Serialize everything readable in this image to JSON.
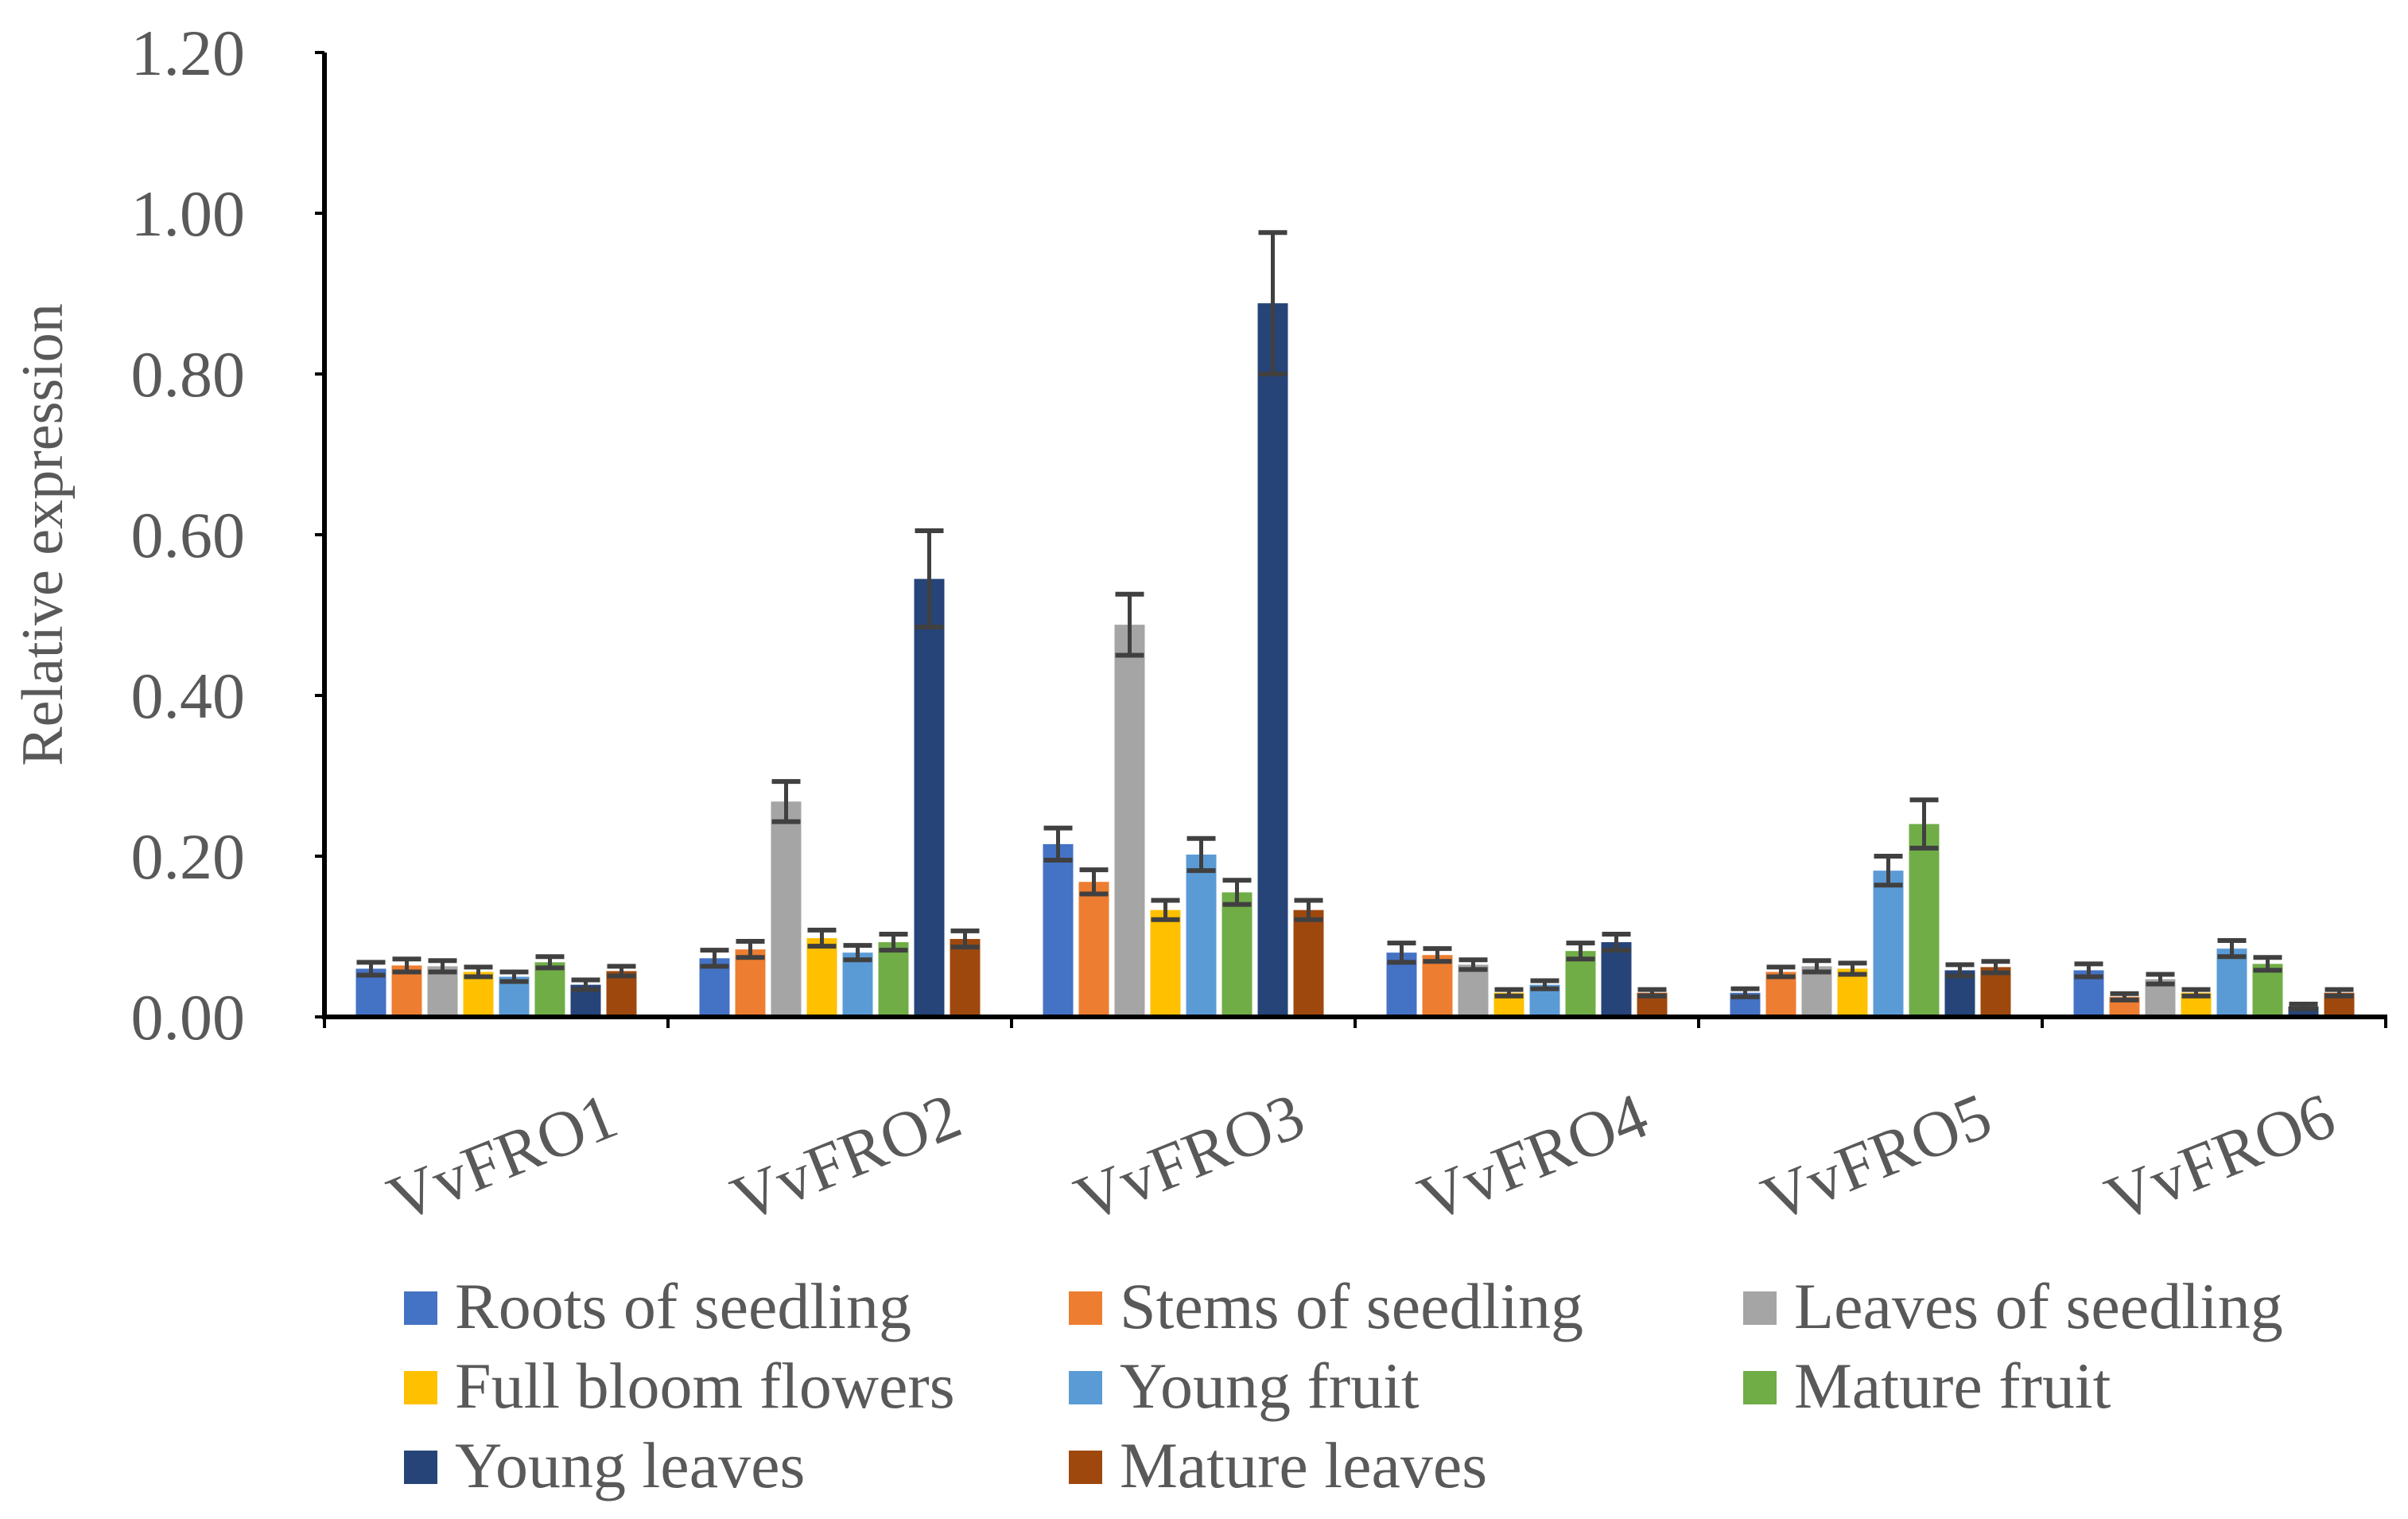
{
  "chart_data": {
    "type": "bar",
    "title": "",
    "xlabel": "",
    "ylabel": "Relative expression",
    "ylim": [
      0,
      1.2
    ],
    "yticks": [
      "0.00",
      "0.20",
      "0.40",
      "0.60",
      "0.80",
      "1.00",
      "1.20"
    ],
    "grid": false,
    "legend_position": "bottom",
    "categories": [
      "VvFRO1",
      "VvFRO2",
      "VvFRO3",
      "VvFRO4",
      "VvFRO5",
      "VvFRO6"
    ],
    "series": [
      {
        "name": "Roots of seedling",
        "color": "#4472C4",
        "values": [
          0.06,
          0.073,
          0.215,
          0.08,
          0.03,
          0.058
        ],
        "errors": [
          0.008,
          0.01,
          0.02,
          0.012,
          0.005,
          0.008
        ]
      },
      {
        "name": " Stems of seedling",
        "color": "#ED7D31",
        "values": [
          0.064,
          0.084,
          0.168,
          0.077,
          0.056,
          0.025
        ],
        "errors": [
          0.008,
          0.01,
          0.015,
          0.008,
          0.006,
          0.004
        ]
      },
      {
        "name": "Leaves of seedling",
        "color": "#A5A5A5",
        "values": [
          0.063,
          0.268,
          0.488,
          0.065,
          0.063,
          0.047
        ],
        "errors": [
          0.007,
          0.025,
          0.038,
          0.006,
          0.007,
          0.006
        ]
      },
      {
        "name": "Full bloom flowers",
        "color": "#FFC000",
        "values": [
          0.056,
          0.098,
          0.133,
          0.03,
          0.06,
          0.03
        ],
        "errors": [
          0.006,
          0.01,
          0.012,
          0.004,
          0.007,
          0.004
        ]
      },
      {
        "name": "Young fruit",
        "color": "#5B9BD5",
        "values": [
          0.05,
          0.08,
          0.202,
          0.04,
          0.182,
          0.085
        ],
        "errors": [
          0.006,
          0.009,
          0.02,
          0.005,
          0.018,
          0.01
        ]
      },
      {
        "name": "Mature fruit",
        "color": "#70AD47",
        "values": [
          0.068,
          0.093,
          0.155,
          0.082,
          0.24,
          0.066
        ],
        "errors": [
          0.007,
          0.01,
          0.015,
          0.01,
          0.03,
          0.008
        ]
      },
      {
        "name": "Young leaves",
        "color": "#264478",
        "values": [
          0.04,
          0.545,
          0.888,
          0.093,
          0.058,
          0.013
        ],
        "errors": [
          0.006,
          0.06,
          0.088,
          0.01,
          0.007,
          0.003
        ]
      },
      {
        "name": "Mature leaves",
        "color": "#9E480E",
        "values": [
          0.057,
          0.097,
          0.133,
          0.03,
          0.062,
          0.03
        ],
        "errors": [
          0.006,
          0.01,
          0.012,
          0.004,
          0.007,
          0.004
        ]
      }
    ]
  }
}
